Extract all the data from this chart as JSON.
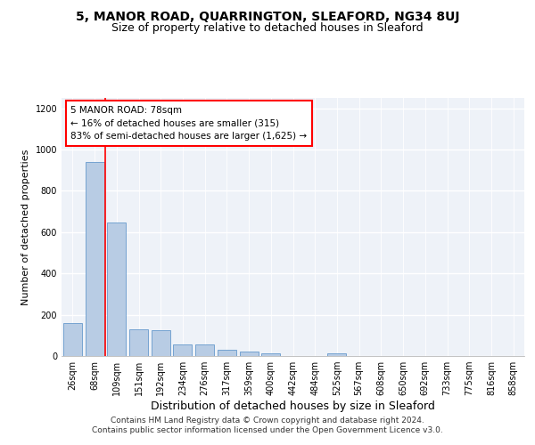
{
  "title_line1": "5, MANOR ROAD, QUARRINGTON, SLEAFORD, NG34 8UJ",
  "title_line2": "Size of property relative to detached houses in Sleaford",
  "xlabel": "Distribution of detached houses by size in Sleaford",
  "ylabel": "Number of detached properties",
  "categories": [
    "26sqm",
    "68sqm",
    "109sqm",
    "151sqm",
    "192sqm",
    "234sqm",
    "276sqm",
    "317sqm",
    "359sqm",
    "400sqm",
    "442sqm",
    "484sqm",
    "525sqm",
    "567sqm",
    "608sqm",
    "650sqm",
    "692sqm",
    "733sqm",
    "775sqm",
    "816sqm",
    "858sqm"
  ],
  "values": [
    158,
    940,
    648,
    128,
    125,
    58,
    55,
    30,
    20,
    12,
    0,
    0,
    15,
    0,
    0,
    0,
    0,
    0,
    0,
    0,
    0
  ],
  "bar_color": "#b8cce4",
  "bar_edge_color": "#6699cc",
  "property_line_x": 1.5,
  "annotation_text": "5 MANOR ROAD: 78sqm\n← 16% of detached houses are smaller (315)\n83% of semi-detached houses are larger (1,625) →",
  "annotation_box_color": "white",
  "annotation_box_edge_color": "red",
  "vline_color": "red",
  "ylim": [
    0,
    1250
  ],
  "yticks": [
    0,
    200,
    400,
    600,
    800,
    1000,
    1200
  ],
  "background_color": "#eef2f8",
  "grid_color": "white",
  "footnote": "Contains HM Land Registry data © Crown copyright and database right 2024.\nContains public sector information licensed under the Open Government Licence v3.0.",
  "title_fontsize": 10,
  "subtitle_fontsize": 9,
  "xlabel_fontsize": 9,
  "ylabel_fontsize": 8,
  "tick_fontsize": 7,
  "annot_fontsize": 7.5,
  "footnote_fontsize": 6.5
}
